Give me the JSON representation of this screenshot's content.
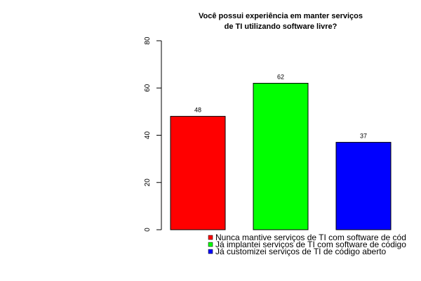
{
  "chart_data": {
    "type": "bar",
    "title_lines": [
      "Você possui experiência em manter serviços",
      "de TI utilizando software livre?"
    ],
    "xlabel": "",
    "ylabel": "",
    "ylim": [
      0,
      80
    ],
    "yticks": [
      0,
      20,
      40,
      60,
      80
    ],
    "grid": false,
    "legend_position": "bottom",
    "values": [
      48,
      62,
      37
    ],
    "colors": [
      "#ff0000",
      "#00ff00",
      "#0000ff"
    ],
    "legend": [
      "Nunca mantive serviços de TI com software de cód",
      "Já implantei serviços de TI com software de código",
      "Já customizei serviços de TI de código aberto"
    ]
  }
}
